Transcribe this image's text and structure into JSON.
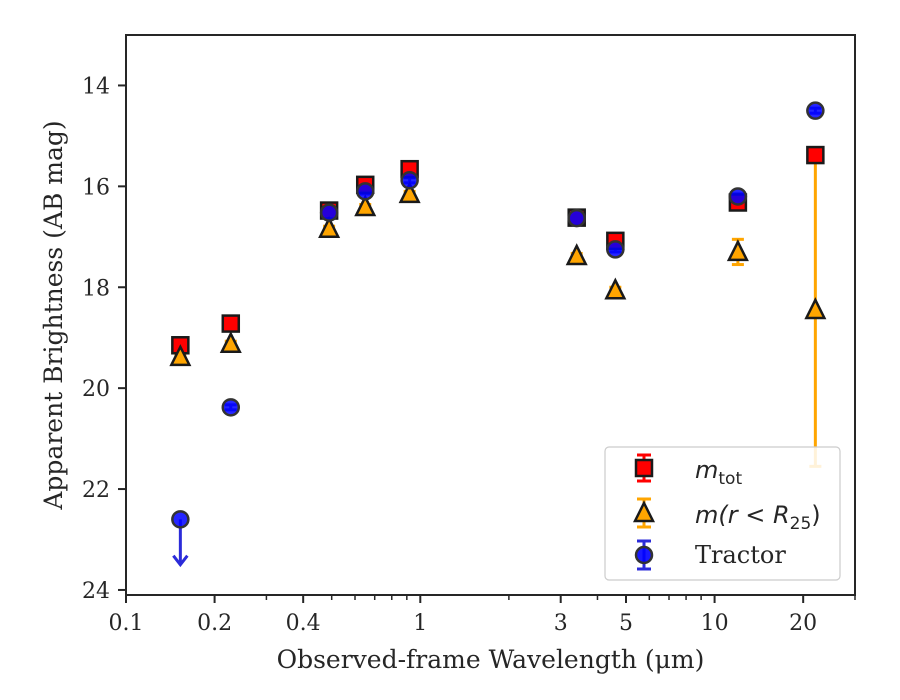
{
  "chart_data": {
    "type": "scatter",
    "title": "",
    "xlabel": "Observed-frame Wavelength (μm)",
    "ylabel": "Apparent Brightness (AB mag)",
    "xscale": "log",
    "xlim": [
      0.1,
      30
    ],
    "ylim": [
      24.1,
      13.0
    ],
    "y_inverted": true,
    "grid": false,
    "legend_position": "lower-right",
    "xticks": [
      {
        "value": 0.1,
        "label": "0.1"
      },
      {
        "value": 0.2,
        "label": "0.2"
      },
      {
        "value": 0.4,
        "label": "0.4"
      },
      {
        "value": 1,
        "label": "1"
      },
      {
        "value": 3,
        "label": "3"
      },
      {
        "value": 5,
        "label": "5"
      },
      {
        "value": 10,
        "label": "10"
      },
      {
        "value": 20,
        "label": "20"
      }
    ],
    "yticks": [
      {
        "value": 14,
        "label": "14"
      },
      {
        "value": 16,
        "label": "16"
      },
      {
        "value": 18,
        "label": "18"
      },
      {
        "value": 20,
        "label": "20"
      },
      {
        "value": 22,
        "label": "22"
      },
      {
        "value": 24,
        "label": "24"
      }
    ],
    "series": [
      {
        "name": "m_tot",
        "marker": "square",
        "color": "#ff0000",
        "edge": "#1a1a1a",
        "points": [
          {
            "x": 0.153,
            "y": 19.15,
            "err": 0.05
          },
          {
            "x": 0.227,
            "y": 18.72,
            "err": 0.05
          },
          {
            "x": 0.49,
            "y": 16.48,
            "err": 0.05
          },
          {
            "x": 0.65,
            "y": 15.97,
            "err": 0.05
          },
          {
            "x": 0.92,
            "y": 15.66,
            "err": 0.05
          },
          {
            "x": 3.4,
            "y": 16.62,
            "err": 0.05
          },
          {
            "x": 4.6,
            "y": 17.08,
            "err": 0.08
          },
          {
            "x": 12.0,
            "y": 16.32,
            "err": 0.05
          },
          {
            "x": 22.0,
            "y": 15.38,
            "err": 0.05
          }
        ]
      },
      {
        "name": "m(r<R25)",
        "marker": "triangle",
        "color": "#ffa500",
        "edge": "#1a1a1a",
        "points": [
          {
            "x": 0.153,
            "y": 19.38,
            "err": 0.05
          },
          {
            "x": 0.227,
            "y": 19.12,
            "err": 0.05
          },
          {
            "x": 0.49,
            "y": 16.84,
            "err": 0.05
          },
          {
            "x": 0.65,
            "y": 16.41,
            "err": 0.05
          },
          {
            "x": 0.92,
            "y": 16.15,
            "err": 0.05
          },
          {
            "x": 3.4,
            "y": 17.38,
            "err": 0.05
          },
          {
            "x": 4.6,
            "y": 18.06,
            "err": 0.06
          },
          {
            "x": 12.0,
            "y": 17.3,
            "err": 0.25
          },
          {
            "x": 22.0,
            "y": 18.45,
            "err": 3.1
          }
        ]
      },
      {
        "name": "Tractor",
        "marker": "circle",
        "color": "#0000ff",
        "edge": "#333333",
        "points": [
          {
            "x": 0.153,
            "y": 22.6,
            "upper_limit": true,
            "arrow_to": 23.5
          },
          {
            "x": 0.227,
            "y": 20.38,
            "err": 0.05
          },
          {
            "x": 0.49,
            "y": 16.52,
            "err": 0.05
          },
          {
            "x": 0.65,
            "y": 16.1,
            "err": 0.05
          },
          {
            "x": 0.92,
            "y": 15.88,
            "err": 0.05
          },
          {
            "x": 3.4,
            "y": 16.63,
            "err": 0.05
          },
          {
            "x": 4.6,
            "y": 17.25,
            "err": 0.05
          },
          {
            "x": 12.0,
            "y": 16.2,
            "err": 0.05
          },
          {
            "x": 22.0,
            "y": 14.5,
            "err": 0.05
          }
        ]
      }
    ]
  },
  "legend": {
    "entries": [
      {
        "label_main": "m",
        "label_sub": "tot"
      },
      {
        "label_pre": "m(r < R",
        "label_sub": "25",
        "label_post": ")"
      },
      {
        "label_plain": "Tractor"
      }
    ]
  }
}
